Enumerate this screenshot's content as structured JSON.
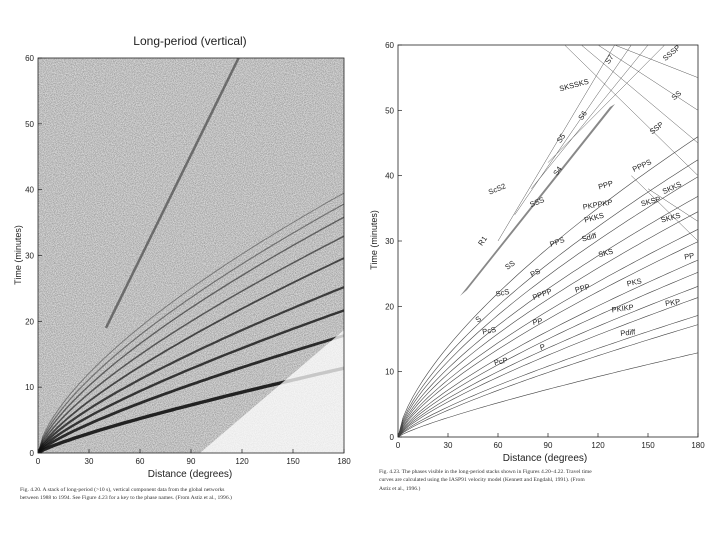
{
  "left_figure": {
    "title": "Long-period (vertical)",
    "ylabel": "Time (minutes)",
    "xlabel": "Distance (degrees)",
    "x_ticks": [
      "0",
      "30",
      "60",
      "90",
      "120",
      "150",
      "180"
    ],
    "y_ticks": [
      "0",
      "10",
      "20",
      "30",
      "40",
      "50",
      "60"
    ],
    "caption_lines": [
      "Fig. 4.20.  A stack of long-period (>10 s), vertical component data from the global networks",
      "between 1988 to 1994. See Figure 4.23 for a key to the phase names. (From Astiz et al., 1996.)"
    ]
  },
  "right_figure": {
    "ylabel": "Time (minutes)",
    "xlabel": "Distance (degrees)",
    "x_ticks": [
      "0",
      "30",
      "60",
      "90",
      "120",
      "150",
      "180"
    ],
    "y_ticks": [
      "0",
      "10",
      "20",
      "30",
      "40",
      "50",
      "60"
    ],
    "caption_lines": [
      "Fig. 4.23.  The phases visible in the long-period stacks shown in Figures 4.20–4.22. Travel time",
      "curves are calculated using the IASP91 velocity model (Kennett and Engdahl, 1991). (From",
      "Astiz et al., 1996.)"
    ],
    "phase_labels": [
      {
        "text": "S7",
        "x": 128,
        "y": 57.6,
        "rot": -55
      },
      {
        "text": "SSSP",
        "x": 165,
        "y": 58.5,
        "rot": -40
      },
      {
        "text": "SKSSKS",
        "x": 106,
        "y": 53.5,
        "rot": -15
      },
      {
        "text": "S6",
        "x": 112,
        "y": 49,
        "rot": -55
      },
      {
        "text": "SS",
        "x": 168,
        "y": 52,
        "rot": -40
      },
      {
        "text": "S5",
        "x": 99,
        "y": 45.5,
        "rot": -55
      },
      {
        "text": "SSP",
        "x": 156,
        "y": 47,
        "rot": -38
      },
      {
        "text": "S4",
        "x": 97,
        "y": 40.5,
        "rot": -55
      },
      {
        "text": "PPPS",
        "x": 147,
        "y": 41.2,
        "rot": -25
      },
      {
        "text": "ScS2",
        "x": 60,
        "y": 37.6,
        "rot": -22
      },
      {
        "text": "PPP",
        "x": 125,
        "y": 38.2,
        "rot": -16
      },
      {
        "text": "SKKS",
        "x": 165,
        "y": 37.8,
        "rot": -25
      },
      {
        "text": "SSS",
        "x": 84,
        "y": 35.6,
        "rot": -22
      },
      {
        "text": "PKPPKP",
        "x": 120,
        "y": 35.2,
        "rot": -10
      },
      {
        "text": "SKSP",
        "x": 152,
        "y": 35.7,
        "rot": -15
      },
      {
        "text": "PKKS",
        "x": 118,
        "y": 33.2,
        "rot": -15
      },
      {
        "text": "SKKS",
        "x": 164,
        "y": 33.2,
        "rot": -15
      },
      {
        "text": "R1",
        "x": 52,
        "y": 29.8,
        "rot": -55
      },
      {
        "text": "PPS",
        "x": 96,
        "y": 29.5,
        "rot": -20
      },
      {
        "text": "Sdiff",
        "x": 115,
        "y": 30.2,
        "rot": -15
      },
      {
        "text": "SS",
        "x": 68,
        "y": 26,
        "rot": -35
      },
      {
        "text": "SKS",
        "x": 125,
        "y": 27.8,
        "rot": -15
      },
      {
        "text": "PP",
        "x": 175,
        "y": 27.3,
        "rot": -10
      },
      {
        "text": "PS",
        "x": 83,
        "y": 24.8,
        "rot": -25
      },
      {
        "text": "ScS",
        "x": 63,
        "y": 21.7,
        "rot": -12
      },
      {
        "text": "PPPP",
        "x": 87,
        "y": 21.5,
        "rot": -20
      },
      {
        "text": "PPP",
        "x": 111,
        "y": 22.4,
        "rot": -15
      },
      {
        "text": "PKS",
        "x": 142,
        "y": 23.3,
        "rot": -12
      },
      {
        "text": "S",
        "x": 49,
        "y": 17.7,
        "rot": -35
      },
      {
        "text": "PcS",
        "x": 55,
        "y": 15.9,
        "rot": -12
      },
      {
        "text": "PP",
        "x": 84,
        "y": 17.3,
        "rot": -12
      },
      {
        "text": "PKIKP",
        "x": 135,
        "y": 19.3,
        "rot": -8
      },
      {
        "text": "PKP",
        "x": 165,
        "y": 20.2,
        "rot": -8
      },
      {
        "text": "PcP",
        "x": 62,
        "y": 11.2,
        "rot": -12
      },
      {
        "text": "P",
        "x": 87,
        "y": 13.4,
        "rot": -12
      },
      {
        "text": "Pdiff",
        "x": 138,
        "y": 15.6,
        "rot": -6
      }
    ]
  }
}
